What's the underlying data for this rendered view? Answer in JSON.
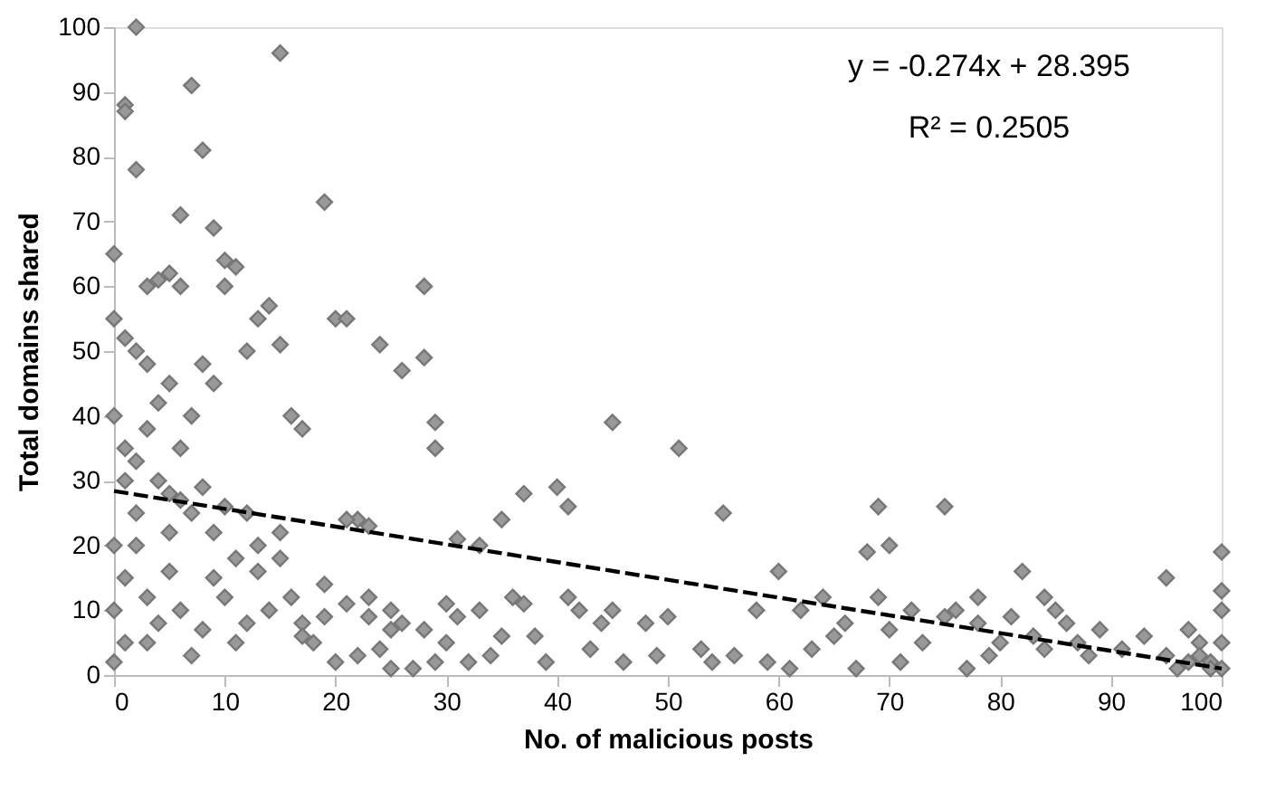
{
  "chart_data": {
    "type": "scatter",
    "xlabel": "No. of malicious posts",
    "ylabel": "Total domains shared",
    "xlim": [
      0,
      100
    ],
    "ylim": [
      0,
      100
    ],
    "xticks": [
      0,
      10,
      20,
      30,
      40,
      50,
      60,
      70,
      80,
      90,
      100
    ],
    "yticks": [
      0,
      10,
      20,
      30,
      40,
      50,
      60,
      70,
      80,
      90,
      100
    ],
    "grid": false,
    "annotations": [
      "y = -0.274x + 28.395",
      "R² = 0.2505"
    ],
    "series": [
      {
        "type": "scatter",
        "marker": "diamond",
        "color": "#999999",
        "x": [
          2,
          1,
          1,
          2,
          7,
          8,
          15,
          6,
          9,
          19,
          0,
          10,
          11,
          3,
          4,
          5,
          6,
          14,
          13,
          20,
          24,
          26,
          28,
          28,
          0,
          1,
          2,
          3,
          5,
          8,
          9,
          10,
          12,
          15,
          16,
          17,
          21,
          29,
          29,
          22,
          23,
          31,
          33,
          35,
          37,
          40,
          41,
          45,
          51,
          55,
          60,
          62,
          64,
          68,
          69,
          70,
          72,
          75,
          76,
          78,
          82,
          84,
          95,
          100,
          100,
          100,
          99,
          98,
          97,
          96,
          95,
          93,
          91,
          89,
          88,
          87,
          86,
          85,
          84,
          83,
          81,
          80,
          79,
          78,
          77,
          75,
          73,
          71,
          70,
          69,
          67,
          66,
          65,
          63,
          61,
          59,
          58,
          56,
          54,
          53,
          50,
          49,
          48,
          46,
          45,
          44,
          43,
          42,
          41,
          39,
          38,
          37,
          36,
          35,
          34,
          33,
          32,
          31,
          30,
          30,
          29,
          28,
          27,
          26,
          25,
          25,
          24,
          23,
          22,
          21,
          20,
          19,
          18,
          17,
          16,
          15,
          14,
          13,
          12,
          11,
          10,
          9,
          8,
          7,
          6,
          5,
          4,
          3,
          2,
          1,
          0,
          1,
          2,
          3,
          4,
          5,
          6,
          7,
          8,
          10,
          12,
          0,
          1,
          0,
          1,
          0,
          2,
          3,
          4,
          5,
          6,
          7,
          9,
          11,
          13,
          15,
          17,
          19,
          21,
          23,
          25,
          100,
          99,
          98,
          97,
          100
        ],
        "values": [
          100,
          88,
          87,
          78,
          91,
          81,
          96,
          71,
          69,
          73,
          65,
          64,
          63,
          60,
          61,
          62,
          60,
          57,
          55,
          55,
          51,
          47,
          49,
          60,
          55,
          52,
          50,
          48,
          45,
          48,
          45,
          60,
          50,
          51,
          40,
          38,
          55,
          39,
          35,
          24,
          23,
          21,
          20,
          24,
          28,
          29,
          26,
          39,
          35,
          25,
          16,
          10,
          12,
          19,
          26,
          20,
          10,
          26,
          10,
          12,
          16,
          12,
          15,
          19,
          13,
          10,
          2,
          5,
          7,
          1,
          3,
          6,
          4,
          7,
          3,
          5,
          8,
          10,
          4,
          6,
          9,
          5,
          3,
          8,
          1,
          9,
          5,
          2,
          7,
          12,
          1,
          8,
          6,
          4,
          1,
          2,
          10,
          3,
          2,
          4,
          9,
          3,
          8,
          2,
          10,
          8,
          4,
          10,
          12,
          2,
          6,
          11,
          12,
          6,
          3,
          10,
          2,
          9,
          11,
          5,
          2,
          7,
          1,
          8,
          10,
          1,
          4,
          9,
          3,
          11,
          2,
          14,
          5,
          8,
          12,
          18,
          10,
          16,
          8,
          5,
          12,
          15,
          7,
          3,
          10,
          16,
          8,
          12,
          20,
          30,
          40,
          35,
          33,
          38,
          42,
          28,
          27,
          25,
          29,
          26,
          25,
          20,
          15,
          10,
          5,
          2,
          25,
          5,
          30,
          22,
          35,
          40,
          22,
          18,
          20,
          22,
          6,
          9,
          24,
          12,
          7,
          5,
          1,
          3,
          2,
          1
        ]
      },
      {
        "type": "line",
        "color": "#000000",
        "line_style": "dashed",
        "x": [
          0,
          100
        ],
        "values": [
          28.4,
          1.0
        ]
      }
    ]
  }
}
